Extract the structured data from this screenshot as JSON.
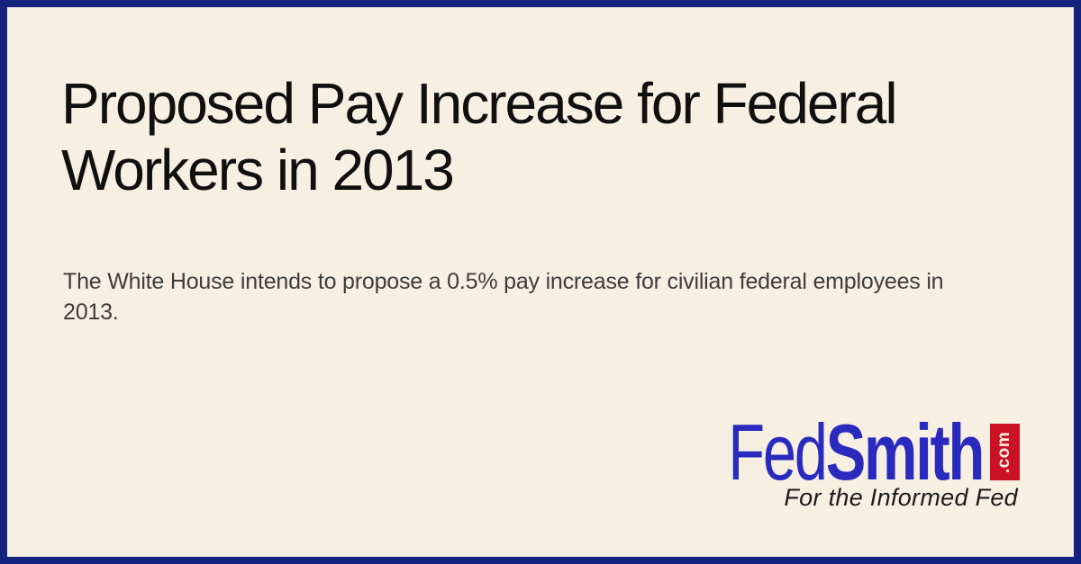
{
  "card": {
    "title": "Proposed Pay Increase for Federal Workers in 2013",
    "subtitle": "The White House intends to propose a 0.5% pay increase for civilian federal employees in 2013.",
    "logo": {
      "name_part1": "Fed",
      "name_part2": "Smith",
      "domain_suffix": ".com",
      "tagline": "For the Informed Fed"
    },
    "colors": {
      "border_navy": "#13237e",
      "background_cream": "#f7f0e2",
      "logo_blue": "#2a2abe",
      "logo_red": "#cb1224",
      "title_text": "#101010",
      "subtitle_text": "#3d3d3d"
    }
  }
}
